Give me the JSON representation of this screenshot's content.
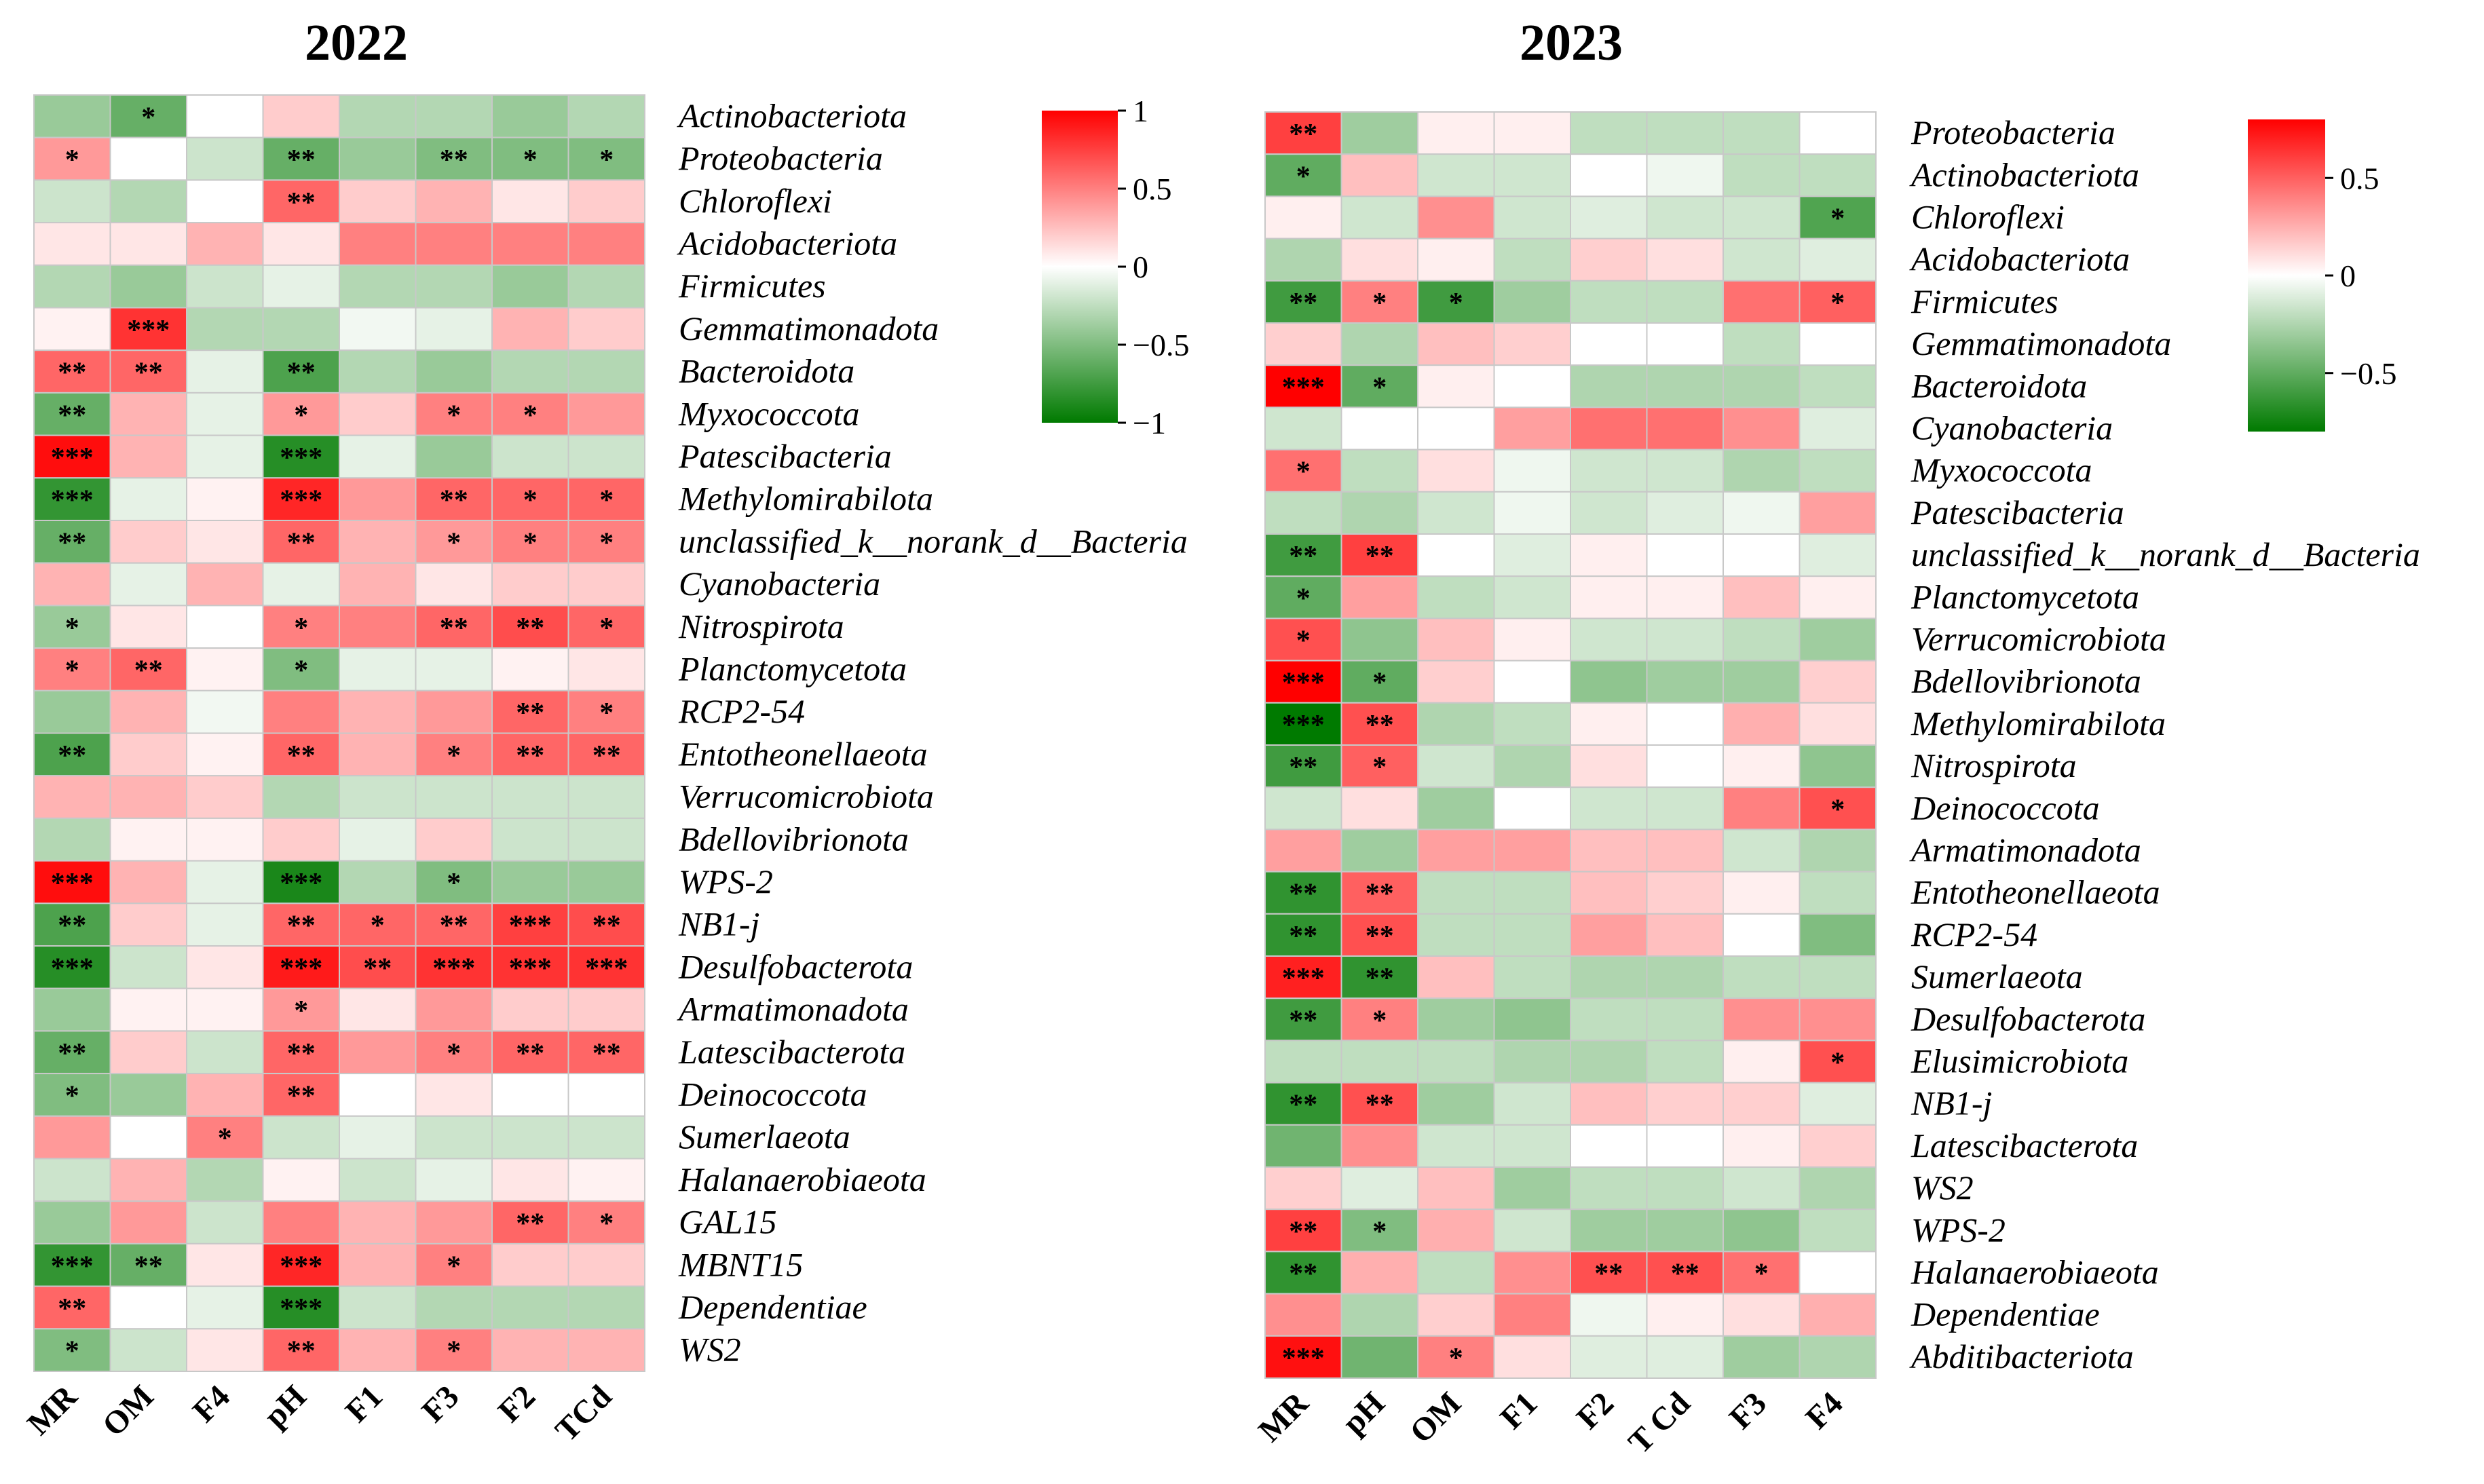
{
  "chart_data": [
    {
      "type": "heatmap",
      "title": "2022",
      "columns": [
        "MR",
        "OM",
        "F4",
        "pH",
        "F1",
        "F3",
        "F2",
        "TCd"
      ],
      "rows": [
        "Actinobacteriota",
        "Proteobacteria",
        "Chloroflexi",
        "Acidobacteriota",
        "Firmicutes",
        "Gemmatimonadota",
        "Bacteroidota",
        "Myxococcota",
        "Patescibacteria",
        "Methylomirabilota",
        "unclassified_k__norank_d__Bacteria",
        "Cyanobacteria",
        "Nitrospirota",
        "Planctomycetota",
        "RCP2-54",
        "Entotheonellaeota",
        "Verrucomicrobiota",
        "Bdellovibrionota",
        "WPS-2",
        "NB1-j",
        "Desulfobacterota",
        "Armatimonadota",
        "Latescibacterota",
        "Deinococcota",
        "Sumerlaeota",
        "Halanaerobiaeota",
        "GAL15",
        "MBNT15",
        "Dependentiae",
        "WS2"
      ],
      "values": [
        [
          -0.4,
          -0.6,
          0.0,
          0.2,
          -0.3,
          -0.3,
          -0.4,
          -0.3
        ],
        [
          0.4,
          0.0,
          -0.2,
          -0.6,
          -0.4,
          -0.5,
          -0.5,
          -0.5
        ],
        [
          -0.2,
          -0.3,
          0.0,
          0.6,
          0.2,
          0.3,
          0.1,
          0.2
        ],
        [
          0.1,
          0.1,
          0.3,
          0.1,
          0.5,
          0.5,
          0.5,
          0.5
        ],
        [
          -0.3,
          -0.4,
          -0.2,
          -0.1,
          -0.3,
          -0.3,
          -0.4,
          -0.3
        ],
        [
          0.05,
          0.8,
          -0.3,
          -0.3,
          -0.05,
          -0.1,
          0.3,
          0.2
        ],
        [
          0.6,
          0.6,
          -0.1,
          -0.7,
          -0.3,
          -0.4,
          -0.3,
          -0.3
        ],
        [
          -0.6,
          0.3,
          -0.1,
          0.4,
          0.2,
          0.5,
          0.5,
          0.4
        ],
        [
          0.95,
          0.3,
          -0.1,
          -0.85,
          -0.1,
          -0.4,
          -0.2,
          -0.2
        ],
        [
          -0.8,
          -0.1,
          0.05,
          0.85,
          0.4,
          0.6,
          0.6,
          0.6
        ],
        [
          -0.6,
          0.2,
          0.1,
          0.6,
          0.3,
          0.4,
          0.5,
          0.5
        ],
        [
          0.3,
          -0.1,
          0.3,
          -0.1,
          0.3,
          0.1,
          0.2,
          0.2
        ],
        [
          -0.4,
          0.1,
          0.0,
          0.5,
          0.5,
          0.6,
          0.7,
          0.6
        ],
        [
          0.5,
          0.6,
          0.05,
          -0.5,
          -0.1,
          -0.1,
          0.05,
          0.1
        ],
        [
          -0.4,
          0.3,
          -0.05,
          0.5,
          0.3,
          0.4,
          0.6,
          0.5
        ],
        [
          -0.7,
          0.2,
          0.05,
          0.6,
          0.3,
          0.5,
          0.6,
          0.6
        ],
        [
          0.3,
          0.3,
          0.2,
          -0.3,
          -0.2,
          -0.2,
          -0.2,
          -0.2
        ],
        [
          -0.3,
          0.05,
          0.05,
          0.2,
          -0.1,
          0.2,
          -0.2,
          -0.2
        ],
        [
          0.95,
          0.3,
          -0.1,
          -0.9,
          -0.3,
          -0.5,
          -0.4,
          -0.4
        ],
        [
          -0.7,
          0.2,
          -0.1,
          0.6,
          0.6,
          0.6,
          0.75,
          0.7
        ],
        [
          -0.85,
          -0.2,
          0.1,
          0.9,
          0.7,
          0.8,
          0.8,
          0.8
        ],
        [
          -0.4,
          0.05,
          0.05,
          0.4,
          0.1,
          0.4,
          0.2,
          0.2
        ],
        [
          -0.6,
          0.2,
          -0.2,
          0.6,
          0.4,
          0.5,
          0.6,
          0.6
        ],
        [
          -0.5,
          -0.4,
          0.3,
          0.6,
          0.0,
          0.1,
          0.0,
          0.0
        ],
        [
          0.4,
          0.0,
          0.5,
          -0.2,
          -0.1,
          -0.2,
          -0.2,
          -0.2
        ],
        [
          -0.2,
          0.3,
          -0.3,
          0.05,
          -0.2,
          -0.1,
          0.1,
          0.05
        ],
        [
          -0.4,
          0.4,
          -0.2,
          0.5,
          0.3,
          0.4,
          0.6,
          0.5
        ],
        [
          -0.8,
          -0.6,
          0.1,
          0.85,
          0.3,
          0.5,
          0.2,
          0.2
        ],
        [
          0.6,
          0.0,
          -0.1,
          -0.85,
          -0.2,
          -0.3,
          -0.3,
          -0.3
        ],
        [
          -0.5,
          -0.2,
          0.1,
          0.6,
          0.3,
          0.5,
          0.3,
          0.3
        ]
      ],
      "significance": [
        [
          "",
          "*",
          "",
          "",
          "",
          "",
          "",
          ""
        ],
        [
          "*",
          "",
          "",
          "**",
          "",
          "**",
          "*",
          "*"
        ],
        [
          "",
          "",
          "",
          "**",
          "",
          "",
          "",
          ""
        ],
        [
          "",
          "",
          "",
          "",
          "",
          "",
          "",
          ""
        ],
        [
          "",
          "",
          "",
          "",
          "",
          "",
          "",
          ""
        ],
        [
          "",
          "***",
          "",
          "",
          "",
          "",
          "",
          ""
        ],
        [
          "**",
          "**",
          "",
          "**",
          "",
          "",
          "",
          ""
        ],
        [
          "**",
          "",
          "",
          "*",
          "",
          "*",
          "*",
          ""
        ],
        [
          "***",
          "",
          "",
          "***",
          "",
          "",
          "",
          ""
        ],
        [
          "***",
          "",
          "",
          "***",
          "",
          "**",
          "*",
          "*"
        ],
        [
          "**",
          "",
          "",
          "**",
          "",
          "*",
          "*",
          "*"
        ],
        [
          "",
          "",
          "",
          "",
          "",
          "",
          "",
          ""
        ],
        [
          "*",
          "",
          "",
          "*",
          "",
          "**",
          "**",
          "*"
        ],
        [
          "*",
          "**",
          "",
          "*",
          "",
          "",
          "",
          ""
        ],
        [
          "",
          "",
          "",
          "",
          "",
          "",
          "**",
          "*"
        ],
        [
          "**",
          "",
          "",
          "**",
          "",
          "*",
          "**",
          "**"
        ],
        [
          "",
          "",
          "",
          "",
          "",
          "",
          "",
          ""
        ],
        [
          "",
          "",
          "",
          "",
          "",
          "",
          "",
          ""
        ],
        [
          "***",
          "",
          "",
          "***",
          "",
          "*",
          "",
          ""
        ],
        [
          "**",
          "",
          "",
          "**",
          "*",
          "**",
          "***",
          "**"
        ],
        [
          "***",
          "",
          "",
          "***",
          "**",
          "***",
          "***",
          "***"
        ],
        [
          "",
          "",
          "",
          "*",
          "",
          "",
          "",
          ""
        ],
        [
          "**",
          "",
          "",
          "**",
          "",
          "*",
          "**",
          "**"
        ],
        [
          "*",
          "",
          "",
          "**",
          "",
          "",
          "",
          ""
        ],
        [
          "",
          "",
          "*",
          "",
          "",
          "",
          "",
          ""
        ],
        [
          "",
          "",
          "",
          "",
          "",
          "",
          "",
          ""
        ],
        [
          "",
          "",
          "",
          "",
          "",
          "",
          "**",
          "*"
        ],
        [
          "***",
          "**",
          "",
          "***",
          "",
          "*",
          "",
          ""
        ],
        [
          "**",
          "",
          "",
          "***",
          "",
          "",
          "",
          ""
        ],
        [
          "*",
          "",
          "",
          "**",
          "",
          "*",
          "",
          ""
        ]
      ],
      "colorbar": {
        "range": [
          -1,
          1
        ],
        "ticks": [
          1,
          0.5,
          0,
          -0.5,
          -1
        ],
        "tick_labels": [
          "1",
          "0.5",
          "0",
          "−0.5",
          "−1"
        ]
      },
      "colors": {
        "positive": "#ff0000",
        "neutral": "#ffffff",
        "negative": "#007a00"
      }
    },
    {
      "type": "heatmap",
      "title": "2023",
      "columns": [
        "MR",
        "pH",
        "OM",
        "F1",
        "F2",
        "T Cd",
        "F3",
        "F4"
      ],
      "rows": [
        "Proteobacteria",
        "Actinobacteriota",
        "Chloroflexi",
        "Acidobacteriota",
        "Firmicutes",
        "Gemmatimonadota",
        "Bacteroidota",
        "Cyanobacteria",
        "Myxococcota",
        "Patescibacteria",
        "unclassified_k__norank_d__Bacteria",
        "Planctomycetota",
        "Verrucomicrobiota",
        "Bdellovibrionota",
        "Methylomirabilota",
        "Nitrospirota",
        "Deinococcota",
        "Armatimonadota",
        "Entotheonellaeota",
        "RCP2-54",
        "Sumerlaeota",
        "Desulfobacterota",
        "Elusimicrobiota",
        "NB1-j",
        "Latescibacterota",
        "WS2",
        "WPS-2",
        "Halanaerobiaeota",
        "Dependentiae",
        "Abditibacteriota"
      ],
      "values": [
        [
          0.6,
          -0.3,
          0.05,
          0.05,
          -0.2,
          -0.2,
          -0.2,
          0.0
        ],
        [
          -0.5,
          0.2,
          -0.15,
          -0.15,
          0.0,
          -0.05,
          -0.2,
          -0.2
        ],
        [
          0.05,
          -0.15,
          0.35,
          -0.15,
          -0.1,
          -0.15,
          -0.15,
          -0.55
        ],
        [
          -0.25,
          0.1,
          0.05,
          -0.2,
          0.15,
          0.1,
          -0.15,
          -0.1
        ],
        [
          -0.6,
          0.4,
          -0.6,
          -0.3,
          -0.2,
          -0.2,
          0.45,
          0.5
        ],
        [
          0.15,
          -0.25,
          0.2,
          0.15,
          0.0,
          0.0,
          -0.2,
          0.0
        ],
        [
          0.8,
          -0.5,
          0.05,
          0.0,
          -0.25,
          -0.25,
          -0.25,
          -0.2
        ],
        [
          -0.15,
          0.0,
          0.0,
          0.3,
          0.45,
          0.45,
          0.35,
          -0.1
        ],
        [
          0.45,
          -0.2,
          0.1,
          -0.05,
          -0.15,
          -0.15,
          -0.25,
          -0.2
        ],
        [
          -0.2,
          -0.25,
          -0.15,
          -0.05,
          -0.15,
          -0.1,
          -0.05,
          0.3
        ],
        [
          -0.6,
          0.6,
          0.0,
          -0.1,
          0.05,
          0.0,
          0.0,
          -0.1
        ],
        [
          -0.5,
          0.3,
          -0.2,
          -0.15,
          0.05,
          0.05,
          0.2,
          0.05
        ],
        [
          0.55,
          -0.35,
          0.2,
          0.05,
          -0.15,
          -0.15,
          -0.2,
          -0.3
        ],
        [
          0.85,
          -0.5,
          0.15,
          0.0,
          -0.35,
          -0.3,
          -0.3,
          0.15
        ],
        [
          -0.8,
          0.55,
          -0.25,
          -0.2,
          0.05,
          0.0,
          0.25,
          0.1
        ],
        [
          -0.6,
          0.5,
          -0.15,
          -0.25,
          0.1,
          0.0,
          0.05,
          -0.35
        ],
        [
          -0.15,
          0.1,
          -0.3,
          0.0,
          -0.15,
          -0.15,
          0.4,
          0.55
        ],
        [
          0.3,
          -0.3,
          0.3,
          0.3,
          0.2,
          0.2,
          -0.15,
          -0.25
        ],
        [
          -0.65,
          0.5,
          -0.2,
          -0.2,
          0.2,
          0.15,
          0.05,
          -0.2
        ],
        [
          -0.65,
          0.55,
          -0.2,
          -0.2,
          0.3,
          0.2,
          0.0,
          -0.4
        ],
        [
          0.7,
          -0.65,
          0.2,
          -0.2,
          -0.25,
          -0.25,
          -0.2,
          -0.2
        ],
        [
          -0.6,
          0.4,
          -0.3,
          -0.35,
          -0.2,
          -0.2,
          0.35,
          0.35
        ],
        [
          -0.2,
          -0.2,
          -0.2,
          -0.25,
          -0.25,
          -0.2,
          0.05,
          0.55
        ],
        [
          -0.65,
          0.55,
          -0.3,
          -0.15,
          0.2,
          0.15,
          0.15,
          -0.1
        ],
        [
          -0.45,
          0.35,
          -0.15,
          -0.15,
          0.0,
          0.0,
          0.05,
          0.15
        ],
        [
          0.15,
          -0.1,
          0.2,
          -0.3,
          -0.2,
          -0.2,
          -0.15,
          -0.25
        ],
        [
          0.6,
          -0.4,
          0.25,
          -0.15,
          -0.3,
          -0.3,
          -0.35,
          -0.2
        ],
        [
          -0.65,
          0.25,
          -0.2,
          0.35,
          0.55,
          0.55,
          0.45,
          0.0
        ],
        [
          0.35,
          -0.25,
          0.15,
          0.4,
          -0.05,
          0.05,
          0.1,
          0.25
        ],
        [
          0.75,
          -0.45,
          0.4,
          0.1,
          -0.1,
          -0.1,
          -0.3,
          -0.25
        ]
      ],
      "significance": [
        [
          "**",
          "",
          "",
          "",
          "",
          "",
          "",
          ""
        ],
        [
          "*",
          "",
          "",
          "",
          "",
          "",
          "",
          ""
        ],
        [
          "",
          "",
          "",
          "",
          "",
          "",
          "",
          "*"
        ],
        [
          "",
          "",
          "",
          "",
          "",
          "",
          "",
          ""
        ],
        [
          "**",
          "*",
          "*",
          "",
          "",
          "",
          "",
          "*"
        ],
        [
          "",
          "",
          "",
          "",
          "",
          "",
          "",
          ""
        ],
        [
          "***",
          "*",
          "",
          "",
          "",
          "",
          "",
          ""
        ],
        [
          "",
          "",
          "",
          "",
          "",
          "",
          "",
          ""
        ],
        [
          "*",
          "",
          "",
          "",
          "",
          "",
          "",
          ""
        ],
        [
          "",
          "",
          "",
          "",
          "",
          "",
          "",
          ""
        ],
        [
          "**",
          "**",
          "",
          "",
          "",
          "",
          "",
          ""
        ],
        [
          "*",
          "",
          "",
          "",
          "",
          "",
          "",
          ""
        ],
        [
          "*",
          "",
          "",
          "",
          "",
          "",
          "",
          ""
        ],
        [
          "***",
          "*",
          "",
          "",
          "",
          "",
          "",
          ""
        ],
        [
          "***",
          "**",
          "",
          "",
          "",
          "",
          "",
          ""
        ],
        [
          "**",
          "*",
          "",
          "",
          "",
          "",
          "",
          ""
        ],
        [
          "",
          "",
          "",
          "",
          "",
          "",
          "",
          "*"
        ],
        [
          "",
          "",
          "",
          "",
          "",
          "",
          "",
          ""
        ],
        [
          "**",
          "**",
          "",
          "",
          "",
          "",
          "",
          ""
        ],
        [
          "**",
          "**",
          "",
          "",
          "",
          "",
          "",
          ""
        ],
        [
          "***",
          "**",
          "",
          "",
          "",
          "",
          "",
          ""
        ],
        [
          "**",
          "*",
          "",
          "",
          "",
          "",
          "",
          ""
        ],
        [
          "",
          "",
          "",
          "",
          "",
          "",
          "",
          "*"
        ],
        [
          "**",
          "**",
          "",
          "",
          "",
          "",
          "",
          ""
        ],
        [
          "",
          "",
          "",
          "",
          "",
          "",
          "",
          ""
        ],
        [
          "",
          "",
          "",
          "",
          "",
          "",
          "",
          ""
        ],
        [
          "**",
          "*",
          "",
          "",
          "",
          "",
          "",
          ""
        ],
        [
          "**",
          "",
          "",
          "",
          "**",
          "**",
          "*",
          ""
        ],
        [
          "",
          "",
          "",
          "",
          "",
          "",
          "",
          ""
        ],
        [
          "***",
          "",
          "*",
          "",
          "",
          "",
          "",
          ""
        ]
      ],
      "colorbar": {
        "range": [
          -0.8,
          0.8
        ],
        "ticks": [
          0.5,
          0,
          -0.5
        ],
        "tick_labels": [
          "0.5",
          "0",
          "−0.5"
        ]
      },
      "colors": {
        "positive": "#ff0000",
        "neutral": "#ffffff",
        "negative": "#007a00"
      }
    }
  ]
}
